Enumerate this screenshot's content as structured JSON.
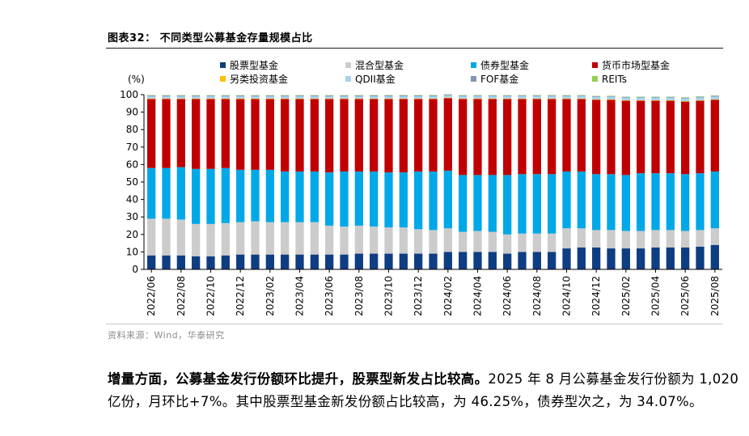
{
  "figure_title": "图表32： 不同类型公募基金存量规模占比",
  "source_note": "资料来源：Wind，华泰研究",
  "paragraph": {
    "bold_lead": "增量方面，公募基金发行份额环比提升，股票型新发占比较高。",
    "text": "2025 年 8 月公募基金发行份额为 1,020 亿份，月环比+7%。其中股票型基金新发份额占比较高，为 46.25%，债券型次之，为 34.07%。"
  },
  "chart_data": {
    "type": "bar",
    "stacked": true,
    "ylabel": "(%)",
    "ylim": [
      0,
      100
    ],
    "yticks": [
      0,
      10,
      20,
      30,
      40,
      50,
      60,
      70,
      80,
      90,
      100
    ],
    "grid": false,
    "legend_position": "top",
    "categories": [
      "2022/06",
      "2022/07",
      "2022/08",
      "2022/09",
      "2022/10",
      "2022/11",
      "2022/12",
      "2023/01",
      "2023/02",
      "2023/03",
      "2023/04",
      "2023/05",
      "2023/06",
      "2023/07",
      "2023/08",
      "2023/09",
      "2023/10",
      "2023/11",
      "2023/12",
      "2024/01",
      "2024/02",
      "2024/03",
      "2024/04",
      "2024/05",
      "2024/06",
      "2024/07",
      "2024/08",
      "2024/09",
      "2024/10",
      "2024/11",
      "2024/12",
      "2025/01",
      "2025/02",
      "2025/03",
      "2025/04",
      "2025/05",
      "2025/06",
      "2025/07",
      "2025/08"
    ],
    "tick_labels": [
      "2022/06",
      "2022/08",
      "2022/10",
      "2022/12",
      "2023/02",
      "2023/04",
      "2023/06",
      "2023/08",
      "2023/10",
      "2023/12",
      "2024/02",
      "2024/04",
      "2024/06",
      "2024/08",
      "2024/10",
      "2024/12",
      "2025/02",
      "2025/04",
      "2025/06",
      "2025/08"
    ],
    "series": [
      {
        "name": "股票型基金",
        "color": "#0f3d82",
        "values": [
          8,
          8,
          8,
          7.5,
          7.5,
          8,
          8.5,
          8.5,
          8.5,
          8.5,
          8.5,
          8.5,
          8.5,
          8.5,
          9,
          9,
          9,
          9,
          9,
          9,
          10,
          10,
          10,
          10,
          9,
          10,
          10,
          10,
          12,
          12.5,
          12.5,
          12,
          12,
          12,
          12.5,
          12.5,
          12.5,
          13,
          14
        ]
      },
      {
        "name": "混合型基金",
        "color": "#cccccc",
        "values": [
          21,
          21,
          20.5,
          18.5,
          18.5,
          18.5,
          18.5,
          19,
          18.5,
          18.5,
          18.5,
          18.5,
          16.5,
          16,
          16,
          15.5,
          15,
          15,
          14,
          13.5,
          13.5,
          11.5,
          12,
          11.5,
          11,
          10.5,
          10.5,
          10.5,
          11.5,
          11,
          10,
          10.5,
          10,
          10,
          10,
          10,
          9.5,
          9.5,
          9.5
        ]
      },
      {
        "name": "债券型基金",
        "color": "#00a8e8",
        "values": [
          29,
          29,
          30,
          31.5,
          31.5,
          31.5,
          30,
          29.5,
          30,
          29,
          29,
          29,
          30.5,
          31.5,
          31,
          31.5,
          31.5,
          31.5,
          33,
          33.5,
          33,
          32.5,
          32,
          32.5,
          34,
          34,
          34,
          34,
          32.5,
          32.5,
          32,
          32,
          32,
          33,
          32.5,
          32.5,
          32.5,
          32.5,
          32.5
        ]
      },
      {
        "name": "货币市场型基金",
        "color": "#c00000",
        "values": [
          39.5,
          39.5,
          39,
          40,
          40,
          39.5,
          40.5,
          40.5,
          40.5,
          41.5,
          41.5,
          41.5,
          42,
          41.5,
          41.5,
          41.5,
          42,
          42,
          41.5,
          41.5,
          41.5,
          43.5,
          43.5,
          43.5,
          43.5,
          43,
          43,
          43,
          41.5,
          41.5,
          42.5,
          42.5,
          42.5,
          41.5,
          41.5,
          41.5,
          41.5,
          41.5,
          41
        ]
      },
      {
        "name": "另类投资基金",
        "color": "#ffc000",
        "values": [
          0.3,
          0.3,
          0.3,
          0.3,
          0.3,
          0.3,
          0.3,
          0.3,
          0.3,
          0.3,
          0.3,
          0.3,
          0.3,
          0.3,
          0.3,
          0.3,
          0.3,
          0.3,
          0.3,
          0.3,
          0.3,
          0.3,
          0.3,
          0.3,
          0.3,
          0.3,
          0.3,
          0.3,
          0.3,
          0.3,
          0.3,
          0.3,
          0.3,
          0.3,
          0.3,
          0.3,
          0.3,
          0.3,
          0.3
        ]
      },
      {
        "name": "QDII基金",
        "color": "#a6d2ee",
        "values": [
          1.2,
          1.2,
          1.2,
          1.2,
          1.2,
          1.2,
          1.2,
          1.2,
          1.2,
          1.2,
          1.2,
          1.2,
          1.2,
          1.2,
          1.2,
          1.3,
          1.3,
          1.3,
          1.3,
          1.3,
          1.3,
          1.3,
          1.4,
          1.4,
          1.4,
          1.4,
          1.4,
          1.4,
          1.4,
          1.4,
          1.4,
          1.5,
          1.5,
          1.5,
          1.5,
          1.5,
          1.6,
          1.6,
          1.6
        ]
      },
      {
        "name": "FOF基金",
        "color": "#8496b0",
        "values": [
          0.5,
          0.5,
          0.5,
          0.5,
          0.5,
          0.5,
          0.5,
          0.5,
          0.5,
          0.5,
          0.5,
          0.5,
          0.5,
          0.5,
          0.5,
          0.5,
          0.5,
          0.5,
          0.5,
          0.5,
          0.4,
          0.4,
          0.4,
          0.4,
          0.4,
          0.4,
          0.4,
          0.4,
          0.4,
          0.4,
          0.4,
          0.4,
          0.4,
          0.4,
          0.4,
          0.4,
          0.4,
          0.4,
          0.4
        ]
      },
      {
        "name": "REITs",
        "color": "#92d050",
        "values": [
          0.2,
          0.2,
          0.2,
          0.2,
          0.2,
          0.2,
          0.2,
          0.2,
          0.2,
          0.2,
          0.2,
          0.2,
          0.2,
          0.2,
          0.2,
          0.2,
          0.2,
          0.2,
          0.2,
          0.2,
          0.2,
          0.2,
          0.2,
          0.2,
          0.2,
          0.2,
          0.2,
          0.2,
          0.2,
          0.2,
          0.2,
          0.2,
          0.2,
          0.2,
          0.2,
          0.2,
          0.2,
          0.2,
          0.2
        ]
      }
    ]
  }
}
